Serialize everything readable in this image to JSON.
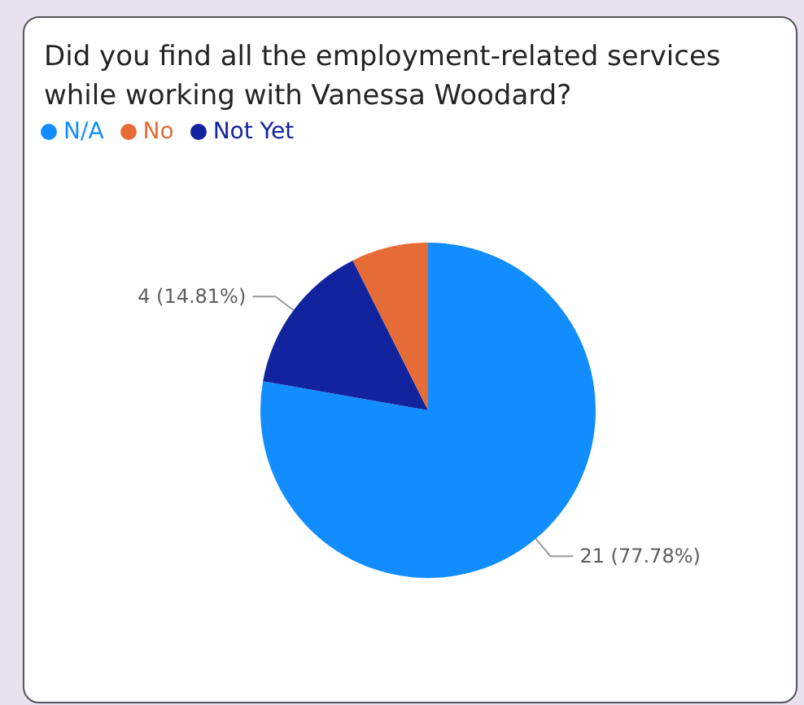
{
  "chart_data": {
    "type": "pie",
    "title": "Did you find all the employment-related services while working with Vanessa Woodard?",
    "categories": [
      "N/A",
      "Not Yet",
      "No"
    ],
    "values": [
      21,
      4,
      2
    ],
    "colors": [
      "#118dff",
      "#12239e",
      "#e66c37"
    ],
    "value_labels": [
      "21 (77.78%)",
      "4 (14.81%)",
      null
    ],
    "legend": "top left"
  }
}
